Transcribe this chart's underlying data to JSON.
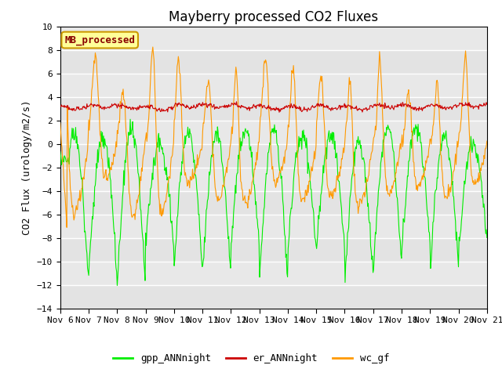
{
  "title": "Mayberry processed CO2 Fluxes",
  "ylabel": "CO2 Flux (urology/m2/s)",
  "ylim": [
    -14,
    10
  ],
  "yticks": [
    -14,
    -12,
    -10,
    -8,
    -6,
    -4,
    -2,
    0,
    2,
    4,
    6,
    8,
    10
  ],
  "xtick_labels": [
    "Nov 6",
    "Nov 7",
    "Nov 8",
    "Nov 9",
    "Nov 10",
    "Nov 11",
    "Nov 12",
    "Nov 13",
    "Nov 14",
    "Nov 15",
    "Nov 16",
    "Nov 17",
    "Nov 18",
    "Nov 19",
    "Nov 20",
    "Nov 21"
  ],
  "color_gpp": "#00ee00",
  "color_er": "#cc0000",
  "color_wc": "#ff9900",
  "bg_color": "#e8e8e8",
  "legend_box_text": "MB_processed",
  "legend_box_facecolor": "#ffff99",
  "legend_box_edgecolor": "#cc9900",
  "legend_text_color": "#880000",
  "n_days": 15,
  "n_per_day": 48,
  "title_fontsize": 12,
  "label_fontsize": 9,
  "tick_fontsize": 8,
  "legend_fontsize": 9
}
